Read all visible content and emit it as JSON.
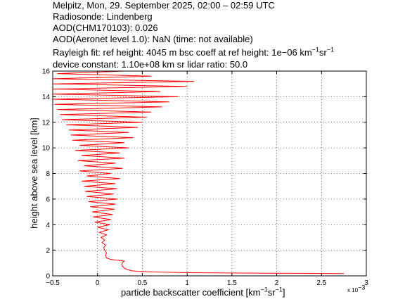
{
  "header": {
    "line1": "Melpitz, Mon, 29. September 2025, 02:00 – 02:59 UTC",
    "line2": "Radiosonde: Lindenberg",
    "line3": "AOD(CHM170103): 0.026",
    "line4": "AOD(Aeronet level 1.0): NaN   (time: not available)",
    "line5_a": "Rayleigh fit:     ref height: 4045 m     bsc coeff at ref height: 1e−06 km",
    "line5_sup1": "−1",
    "line5_b": "sr",
    "line5_sup2": "−1",
    "line6": "device constant: 1.10e+08 km sr     lidar ratio: 50.0"
  },
  "chart_data": {
    "type": "line",
    "xlabel": "particle backscatter coefficient [km",
    "xlabel_sup1": "−1",
    "xlabel_mid": "sr",
    "xlabel_sup2": "−1",
    "xlabel_end": "]",
    "x_multiplier": "x 10",
    "x_multiplier_exp": "−3",
    "ylabel": "height above sea level [km]",
    "xlim": [
      -0.5,
      3
    ],
    "ylim": [
      0,
      16
    ],
    "xticks": [
      "−0.5",
      "0",
      "0.5",
      "1",
      "1.5",
      "2",
      "2.5",
      "3"
    ],
    "xtick_values": [
      -0.5,
      0,
      0.5,
      1,
      1.5,
      2,
      2.5,
      3
    ],
    "yticks": [
      "0",
      "2",
      "4",
      "6",
      "8",
      "10",
      "12",
      "14",
      "16"
    ],
    "ytick_values": [
      0,
      2,
      4,
      6,
      8,
      10,
      12,
      14,
      16
    ],
    "grid": true,
    "series": [
      {
        "color": "#ff0000",
        "points": [
          [
            2.75,
            0.18
          ],
          [
            2.2,
            0.2
          ],
          [
            1.6,
            0.22
          ],
          [
            1.0,
            0.25
          ],
          [
            0.65,
            0.3
          ],
          [
            0.45,
            0.35
          ],
          [
            0.38,
            0.4
          ],
          [
            0.33,
            0.5
          ],
          [
            0.3,
            0.6
          ],
          [
            0.28,
            0.75
          ],
          [
            0.27,
            0.9
          ],
          [
            0.28,
            1.05
          ],
          [
            0.3,
            1.15
          ],
          [
            0.25,
            1.2
          ],
          [
            0.18,
            1.25
          ],
          [
            0.14,
            1.3
          ],
          [
            0.1,
            1.4
          ],
          [
            0.09,
            1.6
          ],
          [
            0.1,
            1.8
          ],
          [
            0.08,
            2.0
          ],
          [
            0.07,
            2.2
          ],
          [
            0.09,
            2.4
          ],
          [
            0.05,
            2.6
          ],
          [
            0.08,
            2.8
          ],
          [
            0.04,
            3.0
          ],
          [
            0.1,
            3.2
          ],
          [
            0.02,
            3.4
          ],
          [
            0.12,
            3.6
          ],
          [
            0.0,
            3.8
          ],
          [
            0.14,
            4.0
          ],
          [
            -0.03,
            4.2
          ],
          [
            0.15,
            4.4
          ],
          [
            -0.05,
            4.6
          ],
          [
            0.17,
            4.8
          ],
          [
            -0.06,
            5.0
          ],
          [
            0.19,
            5.2
          ],
          [
            -0.08,
            5.4
          ],
          [
            0.2,
            5.6
          ],
          [
            -0.1,
            5.8
          ],
          [
            0.22,
            6.0
          ],
          [
            -0.12,
            6.2
          ],
          [
            0.18,
            6.4
          ],
          [
            -0.14,
            6.6
          ],
          [
            0.22,
            6.8
          ],
          [
            -0.15,
            7.0
          ],
          [
            0.2,
            7.2
          ],
          [
            -0.18,
            7.4
          ],
          [
            0.25,
            7.6
          ],
          [
            -0.12,
            7.8
          ],
          [
            0.15,
            8.0
          ],
          [
            -0.2,
            8.2
          ],
          [
            0.28,
            8.4
          ],
          [
            -0.15,
            8.6
          ],
          [
            0.2,
            8.8
          ],
          [
            -0.22,
            9.0
          ],
          [
            0.3,
            9.2
          ],
          [
            -0.18,
            9.4
          ],
          [
            0.25,
            9.6
          ],
          [
            -0.25,
            9.8
          ],
          [
            0.35,
            10.0
          ],
          [
            -0.2,
            10.2
          ],
          [
            0.3,
            10.4
          ],
          [
            -0.28,
            10.6
          ],
          [
            0.4,
            10.8
          ],
          [
            -0.3,
            11.0
          ],
          [
            0.35,
            11.2
          ],
          [
            -0.32,
            11.4
          ],
          [
            0.45,
            11.6
          ],
          [
            -0.35,
            11.8
          ],
          [
            0.5,
            12.0
          ],
          [
            -0.4,
            12.2
          ],
          [
            0.55,
            12.4
          ],
          [
            -0.42,
            12.6
          ],
          [
            0.6,
            12.8
          ],
          [
            -0.45,
            13.0
          ],
          [
            0.72,
            13.2
          ],
          [
            -0.48,
            13.4
          ],
          [
            0.8,
            13.6
          ],
          [
            -0.5,
            13.8
          ],
          [
            0.9,
            14.0
          ],
          [
            -0.5,
            14.2
          ],
          [
            0.7,
            14.4
          ],
          [
            -0.5,
            14.6
          ],
          [
            1.0,
            14.8
          ],
          [
            -0.5,
            15.0
          ],
          [
            1.08,
            15.2
          ],
          [
            -0.5,
            15.4
          ],
          [
            0.6,
            15.6
          ],
          [
            -0.45,
            15.8
          ],
          [
            0.3,
            16.0
          ]
        ]
      }
    ]
  }
}
